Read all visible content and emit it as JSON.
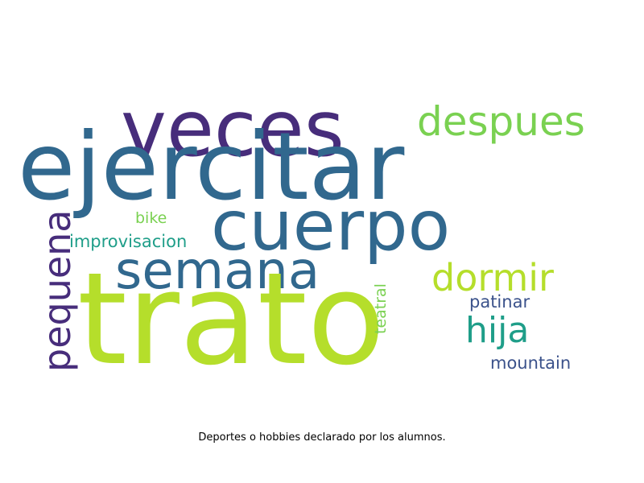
{
  "wordcloud": {
    "words": {
      "ejercitar": "ejercitar",
      "trato": "trato",
      "veces": "veces",
      "cuerpo": "cuerpo",
      "semana": "semana",
      "despues": "despues",
      "dormir": "dormir",
      "hija": "hija",
      "pequena": "pequena",
      "patinar": "patinar",
      "mountain": "mountain",
      "bike": "bike",
      "improvisacion": "improvisacion",
      "teatral": "teatral"
    },
    "colors": {
      "dark_purple": "#472d7b",
      "blue": "#31688e",
      "indigo": "#3b528b",
      "teal": "#1f9e89",
      "green": "#7ad151",
      "lime": "#b5de2b"
    }
  },
  "caption": "Deportes o hobbies declarado por los alumnos."
}
